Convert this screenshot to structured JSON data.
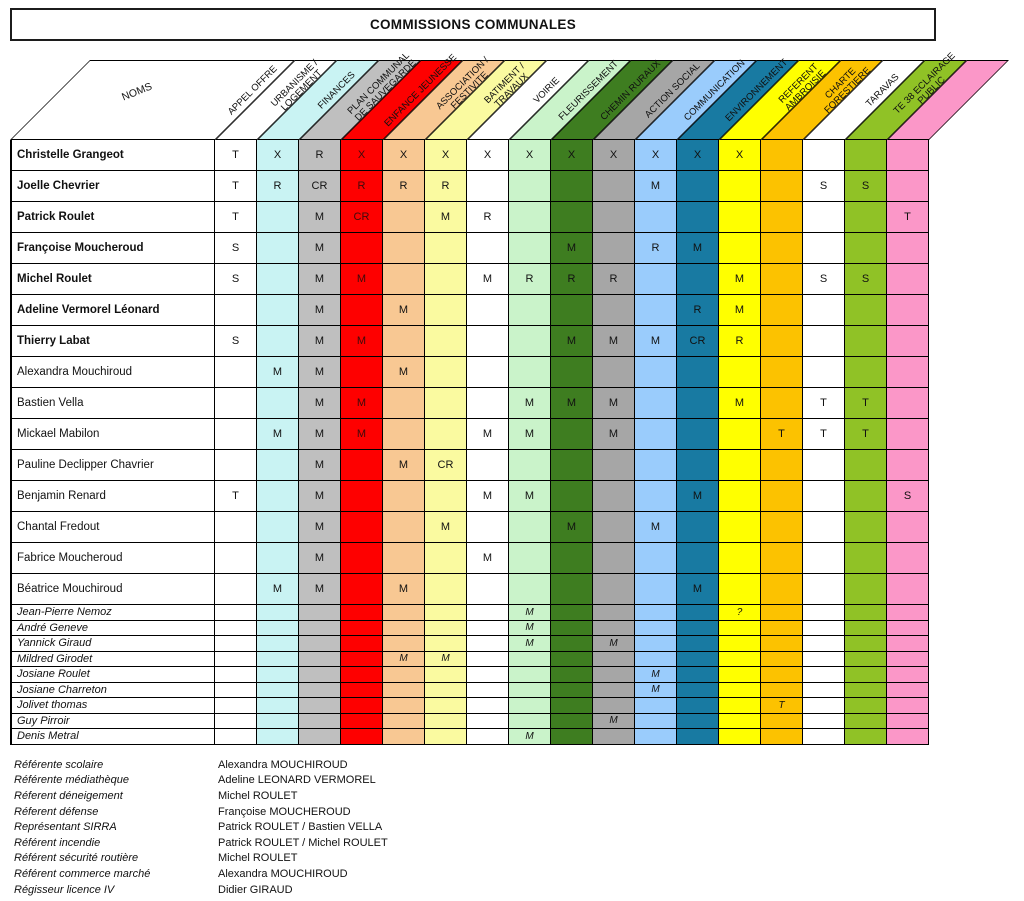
{
  "title": "COMMISSIONS COMMUNALES",
  "table": {
    "name_header": "NOMS",
    "columns": [
      {
        "key": "appel_offre",
        "label": "APPEL OFFRE",
        "color": "#ffffff"
      },
      {
        "key": "urbanisme_logement",
        "label": "URBANISME /\nLOGEMENT",
        "color": "#c9f3f3"
      },
      {
        "key": "finances",
        "label": "FINANCES",
        "color": "#bfbfbf"
      },
      {
        "key": "plan_communal_sauvegarde",
        "label": "PLAN COMMUNAL\nDE SAUVEGARDE",
        "color": "#fe0000",
        "mark_color": "#3d0b0b"
      },
      {
        "key": "enfance_jeunesse",
        "label": "ENFANCE JEUNESSE",
        "color": "#f8c893"
      },
      {
        "key": "association_festivite",
        "label": "ASSOCIATION /\nFESTIVITE",
        "color": "#fafaa0"
      },
      {
        "key": "batiment_travaux",
        "label": "BATIMENT /\nTRAVAUX",
        "color": "#ffffff"
      },
      {
        "key": "voirie",
        "label": "VOIRIE",
        "color": "#caf3ca"
      },
      {
        "key": "fleurissement",
        "label": "FLEURISSEMENT",
        "color": "#3e7d20"
      },
      {
        "key": "chemin_ruraux",
        "label": "CHEMIN RURAUX",
        "color": "#a6a6a6"
      },
      {
        "key": "action_social",
        "label": "ACTION SOCIAL",
        "color": "#9accfc"
      },
      {
        "key": "communication",
        "label": "COMMUNICATION",
        "color": "#187aa2"
      },
      {
        "key": "environnement",
        "label": "ENVIRONNEMENT",
        "color": "#ffff00"
      },
      {
        "key": "referent_ambroisie",
        "label": "REFERENT\nAMBROISIE",
        "color": "#fcc200"
      },
      {
        "key": "charte_forestiere",
        "label": "CHARTE\nFORESTIERE",
        "color": "#ffffff"
      },
      {
        "key": "taravas",
        "label": "TARAVAS",
        "color": "#90c226"
      },
      {
        "key": "te38_eclairage_public",
        "label": "TE 38 ECLAIRAGE\nPUBLIC",
        "color": "#fb97c8"
      }
    ],
    "rows": [
      {
        "name": "Christelle Grangeot",
        "style": "bold",
        "short": false,
        "marks": {
          "appel_offre": "T",
          "urbanisme_logement": "X",
          "finances": "R",
          "plan_communal_sauvegarde": "X",
          "enfance_jeunesse": "X",
          "association_festivite": "X",
          "batiment_travaux": "X",
          "voirie": "X",
          "fleurissement": "X",
          "chemin_ruraux": "X",
          "action_social": "X",
          "communication": "X",
          "environnement": "X"
        }
      },
      {
        "name": "Joelle Chevrier",
        "style": "bold",
        "short": false,
        "marks": {
          "appel_offre": "T",
          "urbanisme_logement": "R",
          "finances": "CR",
          "plan_communal_sauvegarde": "R",
          "enfance_jeunesse": "R",
          "association_festivite": "R",
          "action_social": "M",
          "charte_forestiere": "S",
          "taravas": "S"
        }
      },
      {
        "name": "Patrick Roulet",
        "style": "bold",
        "short": false,
        "marks": {
          "appel_offre": "T",
          "finances": "M",
          "plan_communal_sauvegarde": "CR",
          "association_festivite": "M",
          "batiment_travaux": "R",
          "te38_eclairage_public": "T"
        }
      },
      {
        "name": "Françoise Moucheroud",
        "style": "bold",
        "short": false,
        "marks": {
          "appel_offre": "S",
          "finances": "M",
          "fleurissement": "M",
          "action_social": "R",
          "communication": "M"
        }
      },
      {
        "name": "Michel Roulet",
        "style": "bold",
        "short": false,
        "marks": {
          "appel_offre": "S",
          "finances": "M",
          "plan_communal_sauvegarde": "M",
          "batiment_travaux": "M",
          "voirie": "R",
          "fleurissement": "R",
          "chemin_ruraux": "R",
          "environnement": "M",
          "charte_forestiere": "S",
          "taravas": "S"
        }
      },
      {
        "name": "Adeline Vermorel Léonard",
        "style": "bold",
        "short": false,
        "marks": {
          "finances": "M",
          "enfance_jeunesse": "M",
          "communication": "R",
          "environnement": "M"
        }
      },
      {
        "name": "Thierry Labat",
        "style": "bold",
        "short": false,
        "marks": {
          "appel_offre": "S",
          "finances": "M",
          "plan_communal_sauvegarde": "M",
          "fleurissement": "M",
          "chemin_ruraux": "M",
          "action_social": "M",
          "communication": "CR",
          "environnement": "R"
        }
      },
      {
        "name": "Alexandra Mouchiroud",
        "style": "normal",
        "short": false,
        "marks": {
          "urbanisme_logement": "M",
          "finances": "M",
          "enfance_jeunesse": "M"
        }
      },
      {
        "name": "Bastien Vella",
        "style": "normal",
        "short": false,
        "marks": {
          "finances": "M",
          "plan_communal_sauvegarde": "M",
          "voirie": "M",
          "fleurissement": "M",
          "chemin_ruraux": "M",
          "environnement": "M",
          "charte_forestiere": "T",
          "taravas": "T"
        }
      },
      {
        "name": "Mickael Mabilon",
        "style": "normal",
        "short": false,
        "marks": {
          "urbanisme_logement": "M",
          "finances": "M",
          "plan_communal_sauvegarde": "M",
          "batiment_travaux": "M",
          "voirie": "M",
          "chemin_ruraux": "M",
          "referent_ambroisie": "T",
          "charte_forestiere": "T",
          "taravas": "T"
        }
      },
      {
        "name": "Pauline Declipper Chavrier",
        "style": "normal",
        "short": false,
        "marks": {
          "finances": "M",
          "enfance_jeunesse": "M",
          "association_festivite": "CR"
        }
      },
      {
        "name": "Benjamin Renard",
        "style": "normal",
        "short": false,
        "marks": {
          "appel_offre": "T",
          "finances": "M",
          "batiment_travaux": "M",
          "voirie": "M",
          "communication": "M",
          "te38_eclairage_public": "S"
        }
      },
      {
        "name": "Chantal Fredout",
        "style": "normal",
        "short": false,
        "marks": {
          "finances": "M",
          "association_festivite": "M",
          "fleurissement": "M",
          "action_social": "M"
        }
      },
      {
        "name": "Fabrice Moucheroud",
        "style": "normal",
        "short": false,
        "marks": {
          "finances": "M",
          "batiment_travaux": "M"
        }
      },
      {
        "name": "Béatrice Mouchiroud",
        "style": "normal",
        "short": false,
        "marks": {
          "urbanisme_logement": "M",
          "finances": "M",
          "enfance_jeunesse": "M",
          "communication": "M"
        }
      },
      {
        "name": "Jean-Pierre Nemoz",
        "style": "italic",
        "short": true,
        "marks": {
          "voirie": "M",
          "environnement": "?"
        }
      },
      {
        "name": "André Geneve",
        "style": "italic",
        "short": true,
        "marks": {
          "voirie": "M"
        }
      },
      {
        "name": "Yannick Giraud",
        "style": "italic",
        "short": true,
        "marks": {
          "voirie": "M",
          "chemin_ruraux": "M"
        }
      },
      {
        "name": "Mildred Girodet",
        "style": "italic",
        "short": true,
        "marks": {
          "enfance_jeunesse": "M",
          "association_festivite": "M"
        }
      },
      {
        "name": "Josiane Roulet",
        "style": "italic",
        "short": true,
        "marks": {
          "action_social": "M"
        }
      },
      {
        "name": "Josiane Charreton",
        "style": "italic",
        "short": true,
        "marks": {
          "action_social": "M"
        }
      },
      {
        "name": "Jolivet thomas",
        "style": "italic",
        "short": true,
        "marks": {
          "referent_ambroisie": "T"
        }
      },
      {
        "name": "Guy Pirroir",
        "style": "italic",
        "short": true,
        "marks": {
          "chemin_ruraux": "M"
        }
      },
      {
        "name": "Denis Metral",
        "style": "italic",
        "short": true,
        "marks": {
          "voirie": "M"
        }
      }
    ]
  },
  "legend": [
    {
      "role": "Référente scolaire",
      "person": "Alexandra MOUCHIROUD"
    },
    {
      "role": "Référente médiathèque",
      "person": "Adeline LEONARD VERMOREL"
    },
    {
      "role": "Réferent déneigement",
      "person": "Michel ROULET"
    },
    {
      "role": "Réferent défense",
      "person": "Françoise MOUCHEROUD"
    },
    {
      "role": "Représentant SIRRA",
      "person": "Patrick ROULET / Bastien VELLA"
    },
    {
      "role": "Référent incendie",
      "person": "Patrick ROULET / Michel ROULET"
    },
    {
      "role": "Référent sécurité routière",
      "person": "Michel ROULET"
    },
    {
      "role": "Référent commerce marché",
      "person": "Alexandra MOUCHIROUD"
    },
    {
      "role": "Régisseur licence IV",
      "person": "Didier GIRAUD"
    }
  ]
}
